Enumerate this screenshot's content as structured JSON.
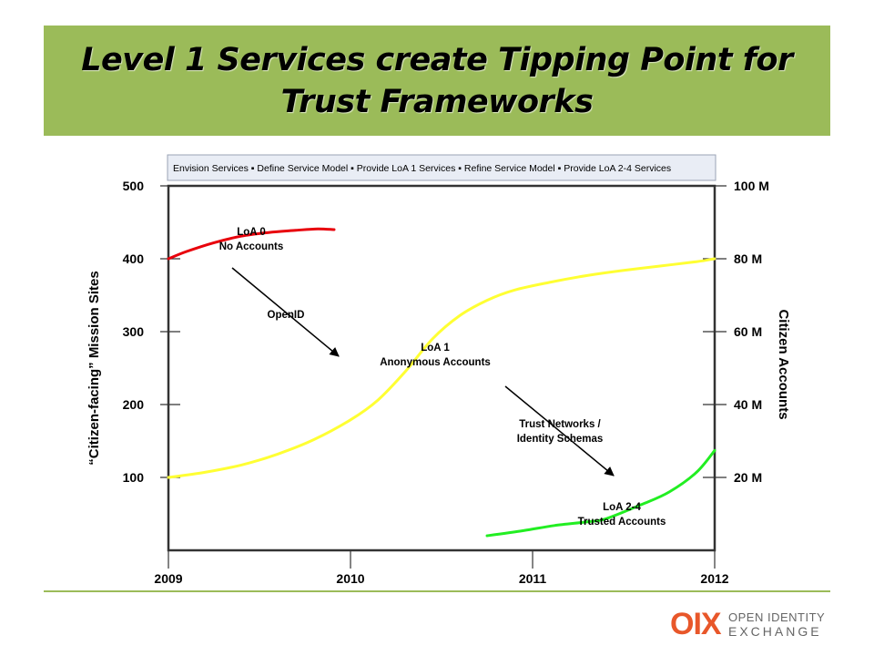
{
  "title": {
    "line1": "Level 1 Services create Tipping Point for",
    "line2": "Trust Frameworks"
  },
  "colors": {
    "banner": "#9bbb59",
    "loa0": "#e8000b",
    "loa1": "#ffff33",
    "loa24": "#22ee22"
  },
  "chart_data": {
    "type": "line",
    "legend_text": "Envision Services ▪ Define Service Model ▪ Provide  LoA 1 Services ▪ Refine Service Model ▪  Provide LoA 2-4 Services",
    "legend_position": "top",
    "x_ticks": [
      2009,
      2010,
      2011,
      2012
    ],
    "xlim": [
      2009,
      2012
    ],
    "y_left": {
      "label": "“Citizen-facing” Mission Sites",
      "ticks": [
        100,
        200,
        300,
        400,
        500
      ],
      "lim": [
        0,
        500
      ]
    },
    "y_right": {
      "label": "Citizen Accounts",
      "ticks": [
        "20 M",
        "40 M",
        "60 M",
        "80 M",
        "100 M"
      ],
      "values": [
        20,
        40,
        60,
        80,
        100
      ],
      "lim": [
        0,
        100
      ]
    },
    "series": [
      {
        "key": "loa0",
        "color": "#e8000b",
        "x": [
          2009.0,
          2009.1,
          2009.25,
          2009.4,
          2009.55,
          2009.7,
          2009.82,
          2009.91
        ],
        "y": [
          400,
          410,
          422,
          431,
          436,
          439,
          441,
          440
        ]
      },
      {
        "key": "loa1",
        "color": "#ffff33",
        "x": [
          2009.0,
          2009.2,
          2009.4,
          2009.6,
          2009.8,
          2010.0,
          2010.15,
          2010.3,
          2010.45,
          2010.6,
          2010.75,
          2010.9,
          2011.1,
          2011.3,
          2011.5,
          2011.7,
          2011.9,
          2012.0
        ],
        "y": [
          100,
          107,
          117,
          132,
          152,
          179,
          206,
          245,
          290,
          322,
          343,
          357,
          368,
          377,
          384,
          390,
          396,
          400
        ]
      },
      {
        "key": "loa24",
        "color": "#22ee22",
        "x": [
          2010.75,
          2010.95,
          2011.12,
          2011.3,
          2011.4,
          2011.6,
          2011.75,
          2011.9,
          2012.0
        ],
        "y": [
          20,
          27,
          34,
          39,
          43,
          63,
          80,
          107,
          137
        ]
      }
    ],
    "annotations": [
      {
        "key": "loa0",
        "lines": [
          "LoA 0",
          "No Accounts"
        ]
      },
      {
        "key": "openid",
        "lines": [
          "OpenID"
        ]
      },
      {
        "key": "loa1",
        "lines": [
          "LoA 1",
          "Anonymous Accounts"
        ]
      },
      {
        "key": "trust",
        "lines": [
          "Trust Networks /",
          "Identity Schemas"
        ]
      },
      {
        "key": "loa24",
        "lines": [
          "LoA 2-4",
          "Trusted Accounts"
        ]
      }
    ]
  },
  "logo": {
    "mark": "OIX",
    "line1": "OPEN IDENTITY",
    "line2": "EXCHANGE"
  }
}
